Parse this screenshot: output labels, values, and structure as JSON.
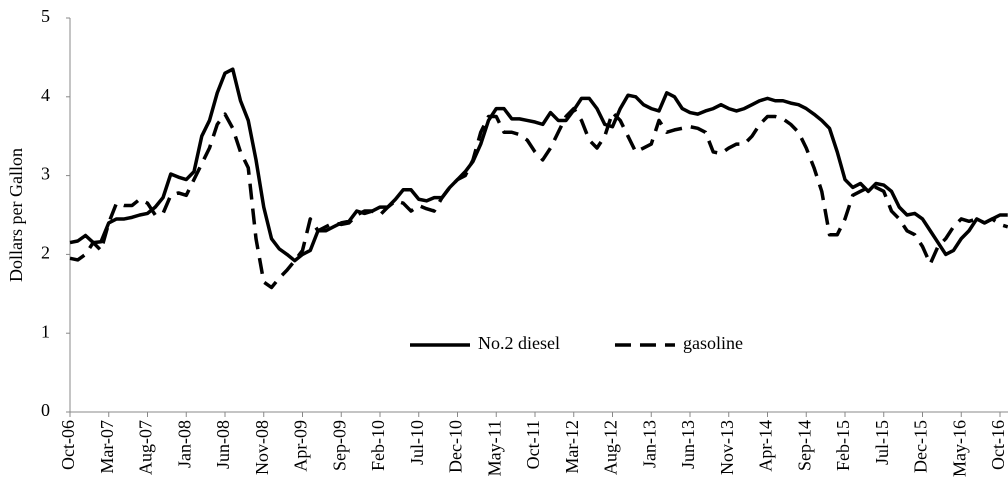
{
  "chart_data": {
    "type": "line",
    "ylabel": "Dollars per Gallon",
    "categories": [
      "Oct-06",
      null,
      null,
      null,
      null,
      "Mar-07",
      null,
      null,
      null,
      null,
      "Aug-07",
      null,
      null,
      null,
      null,
      "Jan-08",
      null,
      null,
      null,
      null,
      "Jun-08",
      null,
      null,
      null,
      null,
      "Nov-08",
      null,
      null,
      null,
      null,
      "Apr-09",
      null,
      null,
      null,
      null,
      "Sep-09",
      null,
      null,
      null,
      null,
      "Feb-10",
      null,
      null,
      null,
      null,
      "Jul-10",
      null,
      null,
      null,
      null,
      "Dec-10",
      null,
      null,
      null,
      null,
      "May-11",
      null,
      null,
      null,
      null,
      "Oct-11",
      null,
      null,
      null,
      null,
      "Mar-12",
      null,
      null,
      null,
      null,
      "Aug-12",
      null,
      null,
      null,
      null,
      "Jan-13",
      null,
      null,
      null,
      null,
      "Jun-13",
      null,
      null,
      null,
      null,
      "Nov-13",
      null,
      null,
      null,
      null,
      "Apr-14",
      null,
      null,
      null,
      null,
      "Sep-14",
      null,
      null,
      null,
      null,
      "Feb-15",
      null,
      null,
      null,
      null,
      "Jul-15",
      null,
      null,
      null,
      null,
      "Dec-15",
      null,
      null,
      null,
      null,
      "May-16",
      null,
      null,
      null,
      null,
      "Oct-16",
      null
    ],
    "series": [
      {
        "name": "No.2 diesel",
        "color": "#000000",
        "line_style": "solid",
        "values": [
          2.15,
          2.17,
          2.24,
          2.15,
          2.16,
          2.4,
          2.45,
          2.45,
          2.47,
          2.5,
          2.52,
          2.6,
          2.72,
          3.02,
          2.98,
          2.95,
          3.05,
          3.5,
          3.7,
          4.05,
          4.3,
          4.35,
          3.95,
          3.7,
          3.2,
          2.6,
          2.2,
          2.07,
          2.0,
          1.92,
          2.0,
          2.05,
          2.3,
          2.3,
          2.35,
          2.4,
          2.42,
          2.55,
          2.52,
          2.55,
          2.6,
          2.6,
          2.7,
          2.82,
          2.82,
          2.7,
          2.68,
          2.72,
          2.72,
          2.85,
          2.95,
          3.05,
          3.18,
          3.4,
          3.7,
          3.85,
          3.85,
          3.72,
          3.72,
          3.7,
          3.68,
          3.65,
          3.8,
          3.7,
          3.7,
          3.83,
          3.98,
          3.98,
          3.85,
          3.65,
          3.62,
          3.85,
          4.02,
          4.0,
          3.9,
          3.85,
          3.82,
          4.05,
          4.0,
          3.85,
          3.8,
          3.78,
          3.82,
          3.85,
          3.9,
          3.85,
          3.82,
          3.85,
          3.9,
          3.95,
          3.98,
          3.95,
          3.95,
          3.92,
          3.9,
          3.85,
          3.78,
          3.7,
          3.6,
          3.3,
          2.95,
          2.85,
          2.9,
          2.8,
          2.9,
          2.88,
          2.8,
          2.6,
          2.5,
          2.52,
          2.45,
          2.3,
          2.15,
          2.0,
          2.05,
          2.2,
          2.3,
          2.45,
          2.4,
          2.45,
          2.5,
          2.5
        ]
      },
      {
        "name": "gasoline",
        "color": "#000000",
        "line_style": "dashed",
        "values": [
          1.95,
          1.93,
          2.0,
          2.15,
          2.05,
          2.4,
          2.65,
          2.62,
          2.62,
          2.7,
          2.65,
          2.5,
          2.52,
          2.75,
          2.78,
          2.75,
          2.95,
          3.15,
          3.35,
          3.65,
          3.78,
          3.6,
          3.3,
          3.1,
          2.2,
          1.65,
          1.58,
          1.7,
          1.8,
          1.92,
          2.05,
          2.45,
          2.3,
          2.35,
          2.4,
          2.38,
          2.4,
          2.5,
          2.55,
          2.55,
          2.5,
          2.6,
          2.68,
          2.65,
          2.55,
          2.62,
          2.58,
          2.55,
          2.72,
          2.85,
          2.95,
          3.0,
          3.2,
          3.55,
          3.75,
          3.75,
          3.55,
          3.55,
          3.52,
          3.45,
          3.3,
          3.2,
          3.35,
          3.55,
          3.75,
          3.85,
          3.7,
          3.45,
          3.35,
          3.5,
          3.8,
          3.7,
          3.5,
          3.3,
          3.35,
          3.4,
          3.7,
          3.55,
          3.58,
          3.6,
          3.62,
          3.6,
          3.55,
          3.3,
          3.28,
          3.35,
          3.4,
          3.4,
          3.5,
          3.65,
          3.75,
          3.75,
          3.72,
          3.65,
          3.55,
          3.35,
          3.1,
          2.8,
          2.25,
          2.25,
          2.45,
          2.75,
          2.8,
          2.85,
          2.85,
          2.8,
          2.55,
          2.45,
          2.3,
          2.25,
          2.1,
          1.88,
          2.1,
          2.2,
          2.35,
          2.45,
          2.42,
          2.45,
          2.4,
          2.45,
          2.38,
          2.35
        ]
      }
    ],
    "ylim": [
      0,
      5
    ],
    "yticks": [
      0,
      1,
      2,
      3,
      4,
      5
    ],
    "grid": false,
    "legend": "lower center"
  }
}
